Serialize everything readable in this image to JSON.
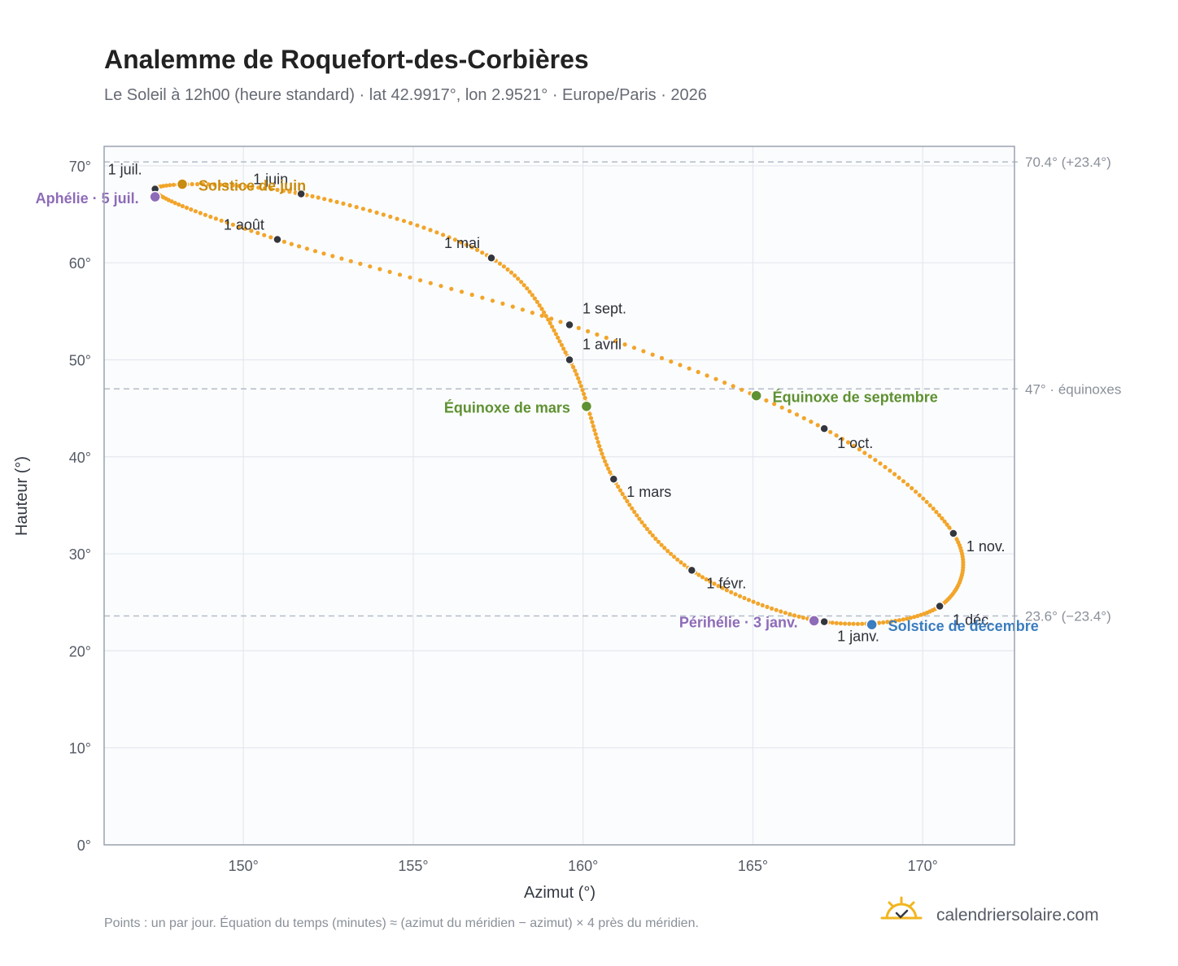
{
  "chart_data": {
    "type": "scatter",
    "title": "Analemme de Roquefort-des-Corbières",
    "subtitle": "Le Soleil à 12h00 (heure standard) · lat 42.9917°, lon 2.9521° · Europe/Paris · 2026",
    "xlabel": "Azimut (°)",
    "ylabel": "Hauteur (°)",
    "xlim": [
      145.9,
      172.7
    ],
    "ylim": [
      0,
      72
    ],
    "xticks": [
      150,
      155,
      160,
      165,
      170
    ],
    "yticks": [
      0,
      10,
      20,
      30,
      40,
      50,
      60,
      70
    ],
    "xtick_labels": [
      "150°",
      "155°",
      "160°",
      "165°",
      "170°"
    ],
    "ytick_labels": [
      "0°",
      "10°",
      "20°",
      "30°",
      "40°",
      "50°",
      "60°",
      "70°"
    ],
    "grid": true,
    "curve_color": "#f2a52a",
    "reference_lines": [
      {
        "y": 70.4,
        "label": "70.4° (+23.4°)"
      },
      {
        "y": 47.0,
        "label": "47° · équinoxes"
      },
      {
        "y": 23.6,
        "label": "23.6° (−23.4°)"
      }
    ],
    "month_points": [
      {
        "label": "1 janv.",
        "x": 167.1,
        "y": 23.0
      },
      {
        "label": "1 févr.",
        "x": 163.2,
        "y": 28.3
      },
      {
        "label": "1 mars",
        "x": 160.9,
        "y": 37.7
      },
      {
        "label": "1 avril",
        "x": 159.6,
        "y": 50.0
      },
      {
        "label": "1 mai",
        "x": 157.3,
        "y": 60.5
      },
      {
        "label": "1 juin",
        "x": 151.7,
        "y": 67.1
      },
      {
        "label": "1 juil.",
        "x": 147.4,
        "y": 67.6
      },
      {
        "label": "1 août",
        "x": 151.0,
        "y": 62.4
      },
      {
        "label": "1 sept.",
        "x": 159.6,
        "y": 53.6
      },
      {
        "label": "1 oct.",
        "x": 167.1,
        "y": 42.9
      },
      {
        "label": "1 nov.",
        "x": 170.9,
        "y": 32.1
      },
      {
        "label": "1 déc.",
        "x": 170.5,
        "y": 24.6
      }
    ],
    "events": [
      {
        "label": "Solstice de juin",
        "x": 148.2,
        "y": 68.1,
        "color": "#c98c10"
      },
      {
        "label": "Aphélie · 5 juil.",
        "x": 147.4,
        "y": 66.8,
        "color": "#8e6bb8"
      },
      {
        "label": "Équinoxe de mars",
        "x": 160.1,
        "y": 45.2,
        "color": "#5e9131"
      },
      {
        "label": "Équinoxe de septembre",
        "x": 165.1,
        "y": 46.3,
        "color": "#5e9131"
      },
      {
        "label": "Périhélie · 3 janv.",
        "x": 166.8,
        "y": 23.1,
        "color": "#8e6bb8"
      },
      {
        "label": "Solstice de décembre",
        "x": 168.5,
        "y": 22.7,
        "color": "#3a7dc0"
      }
    ]
  },
  "footnote": "Points : un par jour. Équation du temps (minutes) ≈ (azimut du méridien − azimut) × 4 près du méridien.",
  "brand": {
    "name": "calendriersolaire.com",
    "icon": "sun-check-logo-icon"
  }
}
